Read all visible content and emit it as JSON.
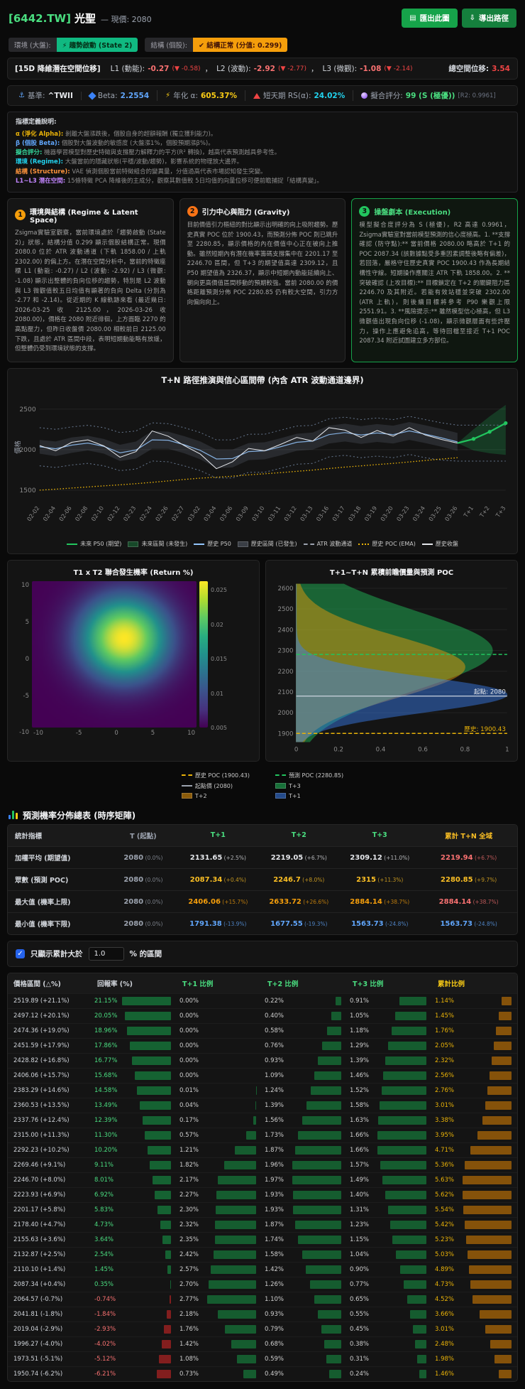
{
  "colors": {
    "accent_green": "#22c55e",
    "accent_orange": "#f59e0b",
    "accent_red": "#ef4444",
    "accent_blue": "#60a5fa",
    "accent_cyan": "#22d3ee",
    "accent_yellow": "#facc15",
    "accent_purple": "#c084fc"
  },
  "header": {
    "ticker": "[6442.TW]",
    "name": "光聖",
    "price_label": "— 現價: 2080",
    "export_image_btn": "匯出此圖",
    "export_path_btn": "導出路徑",
    "export_image_icon": "▤",
    "export_path_icon": "⇩"
  },
  "badges": {
    "env_label": "環境 (大盤):",
    "env_value": "⚡ 趨勢啟動 (State 2)",
    "struct_label": "結構 (個股):",
    "struct_value": "✔ 結構正常 (分值: 0.299)"
  },
  "latent": {
    "title": "[15D 降維潛在空間位移]",
    "items": [
      {
        "label": "L1 (動能):",
        "value": "-0.27",
        "delta": "(▼ -0.58)"
      },
      {
        "label": "L2 (波動):",
        "value": "-2.92",
        "delta": "(▼ -2.77)"
      },
      {
        "label": "L3 (微觀):",
        "value": "-1.08",
        "delta": "(▼ -2.14)"
      }
    ],
    "total_label": "總空間位移:",
    "total_value": "3.54"
  },
  "stats": [
    {
      "icon": "anchor-icon",
      "glyph": "⚓",
      "gcls": "g-anchor",
      "label": "基準:",
      "value": "^TWII",
      "cls": "v-white"
    },
    {
      "icon": "beta-diamond-icon",
      "shape": "diamond",
      "label": "Beta:",
      "value": "2.2554",
      "cls": "v-blue"
    },
    {
      "icon": "alpha-bolt-icon",
      "glyph": "⚡",
      "gcls": "g-bolt",
      "label": "年化 α:",
      "value": "605.37%",
      "cls": "v-yellow"
    },
    {
      "icon": "rs-triangle-icon",
      "shape": "triangle",
      "label": "短天期 RS(α):",
      "value": "24.02%",
      "cls": "v-cyan"
    },
    {
      "icon": "fit-score-icon",
      "shape": "crystal",
      "label": "擬合評分:",
      "value": "99 (S (極優))",
      "suffix": "[R2: 0.9961]",
      "cls": "v-green"
    }
  ],
  "definitions": {
    "title": "指標定義說明:",
    "items": [
      {
        "term": "α (淨化 Alpha):",
        "cls": "t-yellow",
        "text": "剝離大盤漲跌後，個股自身的超額報酬 (獨立獲利能力)。"
      },
      {
        "term": "β (個股 Beta):",
        "cls": "t-blue",
        "text": "個股對大盤波動的敏感度 (大盤漲1%，個股預期漲β%)。"
      },
      {
        "term": "擬合評分:",
        "cls": "t-green",
        "text": "機器學習模型對歷史特徵與支撐壓力解釋力的平方(R² 轉換)，越高代表預測越具參考性。"
      },
      {
        "term": "環境 (Regime):",
        "cls": "t-cyan",
        "text": "大盤當前的隱藏狀態(平穩/波動/趨勢)，影響系統的物理放大邊界。"
      },
      {
        "term": "結構 (Structure):",
        "cls": "t-orange",
        "text": "VAE 偵測個股當前特徵組合的變異量，分值過高代表市場認知發生突變。"
      },
      {
        "term": "L1~L3 潛在空間:",
        "cls": "t-purple",
        "text": "15條特徵 PCA 降維後的主成分，觀察其數值較 5日均值的向量位移可便前瞻捕捉「結構真變」。"
      }
    ]
  },
  "cards": [
    {
      "num": "1",
      "title": "環境與結構 (Regime & Latent Space)",
      "body": "Zsigma實驗室觀察，當前環境處於「趨勢啟動 (State 2)」狀態，結構分值 0.299 顯示個股結構正常。現價 2080.0 位於 ATR 波動通道 (下軌 1858.00 / 上軌 2302.00) 的偏上方。在潛在空間分析中，當前的特徵座標 L1 (動能: -0.27) / L2 (波動: -2.92) / L3 (微觀: -1.08) 顯示出整體的負向位移的趨勢，特別是 L2 波動與 L3 微觀值較五日均值有顯著的負向 Delta (分別為 -2.77 和 -2.14)。從近期的 K 線軌跡來看 (最近幾日: 2026-03-25 收 2125.00，2026-03-26 收 2080.00)，價格在 2080 附近徘徊，上方面臨 2270 的高點壓力，但昨日收盤價 2080.00 相較前日 2125.00 下跌，且處於 ATR 區間中段，表明短期動能略有放緩，但整體仍受到環境狀態的支撐。"
    },
    {
      "num": "2",
      "title": "引力中心與阻力 (Gravity)",
      "body": "目前價值引力樞紐的對比顯示出明確的向上吸附趨勢。歷史真實 POC 位於 1900.43，而預測分佈 POC 則已跳升至 2280.85，顯示價格的內在價值中心正在被向上推動。雖然短期內有潛在機率籌碼支撐集中在 2201.17 至 2246.70 區間，但 T+3 的期望值高達 2309.12，且 P50 期望值為 2326.37，顯示中短期內動能延續向上、朝向更高價值區間移動的預期較強。當前 2080.00 的價格距離預測分佈 POC 2280.85 仍有較大空間，引力方向偏向向上。"
    },
    {
      "num": "3",
      "title": "操盤劇本 (Execution)",
      "body": "模型擬合度評分為 S (極優)，R2 高達 0.9961，Zsigma實驗室對當前模型預測的信心度極高。1. **支撐確認 (防守點):** 當前價格 2080.00 略高於 T+1 的 POC 2087.34 (該數據點受多重因素調整後略有偏差)，若回落，嚴格守住歷史真實 POC 1900.43 作為長期結構性守線。短期操作應關注 ATR 下軌 1858.00。2. **突破確認 (上攻目標):** 目標鎖定在 T+2 的關鍵阻力區 2246.70 及其附近。若能有效站穩並突破 2302.00 (ATR 上軌)，則後續目標將參考 P90 樂觀上限 2551.91。3. **風險提示:** 雖然模型信心極高，但 L3 微觀值出現負向位移 (-1.08)，顯示微觀層面有些許壓力，操作上應避免追高，等待回檔至接近 T+1 POC 2087.34 附近試圖建立多方部位。"
    }
  ],
  "chart_data": [
    {
      "type": "line",
      "title": "T+N 路徑推演與信心區間帶 (內含 ATR 波動通道邊界)",
      "ylabel": "價格",
      "ylim": [
        1380,
        2680
      ],
      "yticks": [
        1500,
        2000,
        2500
      ],
      "x_labels": [
        "02-02",
        "02-04",
        "02-06",
        "02-08",
        "02-10",
        "02-12",
        "02-23",
        "02-24",
        "02-26",
        "02-27",
        "03-02",
        "03-04",
        "03-06",
        "03-09",
        "03-10",
        "03-11",
        "03-12",
        "03-13",
        "03-16",
        "03-17",
        "03-18",
        "03-19",
        "03-20",
        "03-23",
        "03-24",
        "03-25",
        "03-26",
        "T+1",
        "T+2",
        "T+3"
      ],
      "hist_close": [
        2050,
        1985,
        2090,
        2120,
        2045,
        1905,
        1975,
        2230,
        2165,
        2050,
        1945,
        1765,
        1850,
        2015,
        1985,
        2065,
        2150,
        2105,
        2270,
        2240,
        2150,
        2235,
        2165,
        2270,
        2180,
        2125,
        2080
      ],
      "hist_p50": [
        2035,
        2010,
        2055,
        2080,
        2040,
        1960,
        1995,
        2120,
        2115,
        2060,
        1990,
        1885,
        1890,
        1975,
        1985,
        2035,
        2090,
        2105,
        2185,
        2210,
        2180,
        2205,
        2185,
        2230,
        2190,
        2145,
        2095
      ],
      "hist_lo": [
        1950,
        1920,
        1960,
        1990,
        1950,
        1860,
        1890,
        2010,
        2010,
        1955,
        1880,
        1770,
        1780,
        1870,
        1880,
        1930,
        1985,
        2000,
        2075,
        2100,
        2070,
        2095,
        2075,
        2120,
        2080,
        2035,
        1985
      ],
      "hist_hi": [
        2120,
        2100,
        2150,
        2170,
        2130,
        2060,
        2100,
        2230,
        2220,
        2165,
        2100,
        2000,
        2000,
        2080,
        2090,
        2140,
        2195,
        2210,
        2295,
        2320,
        2290,
        2315,
        2295,
        2340,
        2300,
        2255,
        2205
      ],
      "atr_upper": [
        2270,
        2250,
        2280,
        2300,
        2270,
        2210,
        2230,
        2330,
        2320,
        2270,
        2210,
        2120,
        2120,
        2190,
        2190,
        2240,
        2290,
        2300,
        2380,
        2400,
        2370,
        2390,
        2370,
        2410,
        2370,
        2330,
        2302,
        2302,
        2302,
        2302
      ],
      "atr_lower": [
        1800,
        1780,
        1810,
        1830,
        1800,
        1740,
        1760,
        1860,
        1850,
        1800,
        1740,
        1650,
        1650,
        1720,
        1720,
        1770,
        1820,
        1830,
        1910,
        1930,
        1900,
        1920,
        1900,
        1940,
        1900,
        1870,
        1858,
        1858,
        1858,
        1858
      ],
      "poc_ema": [
        1500,
        1512,
        1526,
        1540,
        1553,
        1566,
        1580,
        1596,
        1614,
        1632,
        1648,
        1660,
        1672,
        1688,
        1702,
        1716,
        1732,
        1748,
        1766,
        1784,
        1800,
        1816,
        1830,
        1848,
        1866,
        1884,
        1900
      ],
      "future_x_start": 26,
      "future_p50": [
        2080,
        2131.65,
        2219.05,
        2326.37
      ],
      "future_lo": [
        2080,
        1990,
        1955,
        1935
      ],
      "future_hi": [
        2080,
        2250,
        2410,
        2551.91
      ]
    },
    {
      "type": "heatmap",
      "title": "T1 x T2 聯合發生機率 (Return %)",
      "x_range": [
        -10,
        10
      ],
      "y_range": [
        -10,
        10
      ],
      "x_ticks": [
        "-10",
        "-5",
        "0",
        "5",
        "10"
      ],
      "y_ticks": [
        "10",
        "5",
        "0",
        "-5",
        "-10"
      ],
      "center": [
        1.2,
        2.2
      ],
      "sigma": [
        3.4,
        3.6
      ],
      "peak_value": 0.027,
      "colorbar_ticks": [
        "0.025",
        "0.02",
        "0.015",
        "0.01",
        "0.005"
      ]
    },
    {
      "type": "area",
      "title": "T+1~T+N 累積前瞻價量與預測 POC",
      "price_range": [
        1860,
        2620
      ],
      "y_ticks": [
        1900,
        2000,
        2100,
        2200,
        2300,
        2400,
        2500,
        2600
      ],
      "x_ticks": [
        "0",
        "0.2",
        "0.4",
        "0.6",
        "0.8",
        "1"
      ],
      "series": [
        {
          "name": "T+3",
          "color": "#22c55e",
          "center": 2300,
          "sigma": 190,
          "amp": 0.93
        },
        {
          "name": "T+2",
          "color": "#f59e0b",
          "center": 2220,
          "sigma": 145,
          "amp": 0.8
        },
        {
          "name": "T+1",
          "color": "#3b82f6",
          "center": 2087,
          "sigma": 85,
          "amp": 1.0
        }
      ],
      "hist_poc": 1900.43,
      "pred_poc": 2280.85,
      "start_price": 2080,
      "ann_start": "起點: 2080",
      "ann_hist": "歷史: 1900.43"
    }
  ],
  "legend1": [
    {
      "label": "未來 P50 (期望)",
      "type": "line",
      "color": "#22c55e"
    },
    {
      "label": "未來區間 (未發生)",
      "type": "box",
      "color": "rgba(34,197,94,0.3)"
    },
    {
      "label": "歷史 P50",
      "type": "line",
      "color": "#93c5fd"
    },
    {
      "label": "歷史區間 (已發生)",
      "type": "box",
      "color": "rgba(148,163,184,0.3)"
    },
    {
      "label": "ATR 波動通道",
      "type": "dash",
      "color": "#9ca3af"
    },
    {
      "label": "歷史 POC (EMA)",
      "type": "dot",
      "color": "#eab308"
    },
    {
      "label": "歷史收盤",
      "type": "line",
      "color": "#e5e7eb"
    }
  ],
  "legend2": [
    {
      "label": "歷史 POC (1900.43)",
      "type": "dash",
      "color": "#eab308"
    },
    {
      "label": "預測 POC (2280.85)",
      "type": "dash",
      "color": "#22c55e"
    },
    {
      "label": "起點價 (2080)",
      "type": "line",
      "color": "#9ca3af"
    },
    {
      "label": "T+3",
      "type": "box",
      "color": "rgba(34,197,94,0.55)"
    },
    {
      "label": "T+2",
      "type": "box",
      "color": "rgba(245,158,11,0.55)"
    },
    {
      "label": "T+1",
      "type": "box",
      "color": "rgba(59,130,246,0.55)"
    }
  ],
  "table1": {
    "title": "預測機率分佈總表 (時序矩陣)",
    "headers": [
      "統計指標",
      "T (起點)",
      "T+1",
      "T+2",
      "T+3",
      "累計 T+N 全域"
    ],
    "rows": [
      {
        "label": "加權平均 (期望值)",
        "cells": [
          {
            "v": "2080",
            "p": "(0.0%)",
            "c": "c-gray"
          },
          {
            "v": "2131.65",
            "p": "(+2.5%)",
            "c": "c-white"
          },
          {
            "v": "2219.05",
            "p": "(+6.7%)",
            "c": "c-white"
          },
          {
            "v": "2309.12",
            "p": "(+11.0%)",
            "c": "c-white"
          },
          {
            "v": "2219.94",
            "p": "(+6.7%)",
            "c": "c-red"
          }
        ]
      },
      {
        "label": "眾數 (預測 POC)",
        "cells": [
          {
            "v": "2080",
            "p": "(0.0%)",
            "c": "c-gray"
          },
          {
            "v": "2087.34",
            "p": "(+0.4%)",
            "c": "c-orange"
          },
          {
            "v": "2246.7",
            "p": "(+8.0%)",
            "c": "c-orange"
          },
          {
            "v": "2315",
            "p": "(+11.3%)",
            "c": "c-orange"
          },
          {
            "v": "2280.85",
            "p": "(+9.7%)",
            "c": "c-orange"
          }
        ]
      },
      {
        "label": "最大值 (機率上限)",
        "cells": [
          {
            "v": "2080",
            "p": "(0.0%)",
            "c": "c-gray"
          },
          {
            "v": "2406.06",
            "p": "(+15.7%)",
            "c": "c-amber"
          },
          {
            "v": "2633.72",
            "p": "(+26.6%)",
            "c": "c-amber"
          },
          {
            "v": "2884.14",
            "p": "(+38.7%)",
            "c": "c-amber"
          },
          {
            "v": "2884.14",
            "p": "(+38.7%)",
            "c": "c-red"
          }
        ]
      },
      {
        "label": "最小值 (機率下限)",
        "cells": [
          {
            "v": "2080",
            "p": "(0.0%)",
            "c": "c-gray"
          },
          {
            "v": "1791.38",
            "p": "(-13.9%)",
            "c": "c-blue"
          },
          {
            "v": "1677.55",
            "p": "(-19.3%)",
            "c": "c-blue"
          },
          {
            "v": "1563.73",
            "p": "(-24.8%)",
            "c": "c-blue"
          },
          {
            "v": "1563.73",
            "p": "(-24.8%)",
            "c": "c-blue"
          }
        ]
      }
    ]
  },
  "filter": {
    "check_glyph": "✓",
    "label_prefix": "只顯示累計大於",
    "value": "1.0",
    "label_suffix": "% 的區間"
  },
  "table2": {
    "headers": [
      "價格區間 (△%)",
      "回報率 (%)",
      "T+1 比例",
      "T+2 比例",
      "T+3 比例",
      "累計比例"
    ],
    "max": {
      "ret": 21.15,
      "t1": 2.77,
      "t2": 1.97,
      "t3": 1.66,
      "cum": 5.63
    },
    "rows": [
      [
        "2519.89 (+21.1%)",
        "21.15%",
        "0.00%",
        "0.22%",
        "0.91%",
        "1.14%"
      ],
      [
        "2497.12 (+20.1%)",
        "20.05%",
        "0.00%",
        "0.40%",
        "1.05%",
        "1.45%"
      ],
      [
        "2474.36 (+19.0%)",
        "18.96%",
        "0.00%",
        "0.58%",
        "1.18%",
        "1.76%"
      ],
      [
        "2451.59 (+17.9%)",
        "17.86%",
        "0.00%",
        "0.76%",
        "1.29%",
        "2.05%"
      ],
      [
        "2428.82 (+16.8%)",
        "16.77%",
        "0.00%",
        "0.93%",
        "1.39%",
        "2.32%"
      ],
      [
        "2406.06 (+15.7%)",
        "15.68%",
        "0.00%",
        "1.09%",
        "1.46%",
        "2.56%"
      ],
      [
        "2383.29 (+14.6%)",
        "14.58%",
        "0.01%",
        "1.24%",
        "1.52%",
        "2.76%"
      ],
      [
        "2360.53 (+13.5%)",
        "13.49%",
        "0.04%",
        "1.39%",
        "1.58%",
        "3.01%"
      ],
      [
        "2337.76 (+12.4%)",
        "12.39%",
        "0.17%",
        "1.56%",
        "1.63%",
        "3.38%"
      ],
      [
        "2315.00 (+11.3%)",
        "11.30%",
        "0.57%",
        "1.73%",
        "1.66%",
        "3.95%"
      ],
      [
        "2292.23 (+10.2%)",
        "10.20%",
        "1.21%",
        "1.87%",
        "1.66%",
        "4.71%"
      ],
      [
        "2269.46 (+9.1%)",
        "9.11%",
        "1.82%",
        "1.96%",
        "1.57%",
        "5.36%"
      ],
      [
        "2246.70 (+8.0%)",
        "8.01%",
        "2.17%",
        "1.97%",
        "1.49%",
        "5.63%"
      ],
      [
        "2223.93 (+6.9%)",
        "6.92%",
        "2.27%",
        "1.93%",
        "1.40%",
        "5.62%"
      ],
      [
        "2201.17 (+5.8%)",
        "5.83%",
        "2.30%",
        "1.93%",
        "1.31%",
        "5.54%"
      ],
      [
        "2178.40 (+4.7%)",
        "4.73%",
        "2.32%",
        "1.87%",
        "1.23%",
        "5.42%"
      ],
      [
        "2155.63 (+3.6%)",
        "3.64%",
        "2.35%",
        "1.74%",
        "1.15%",
        "5.23%"
      ],
      [
        "2132.87 (+2.5%)",
        "2.54%",
        "2.42%",
        "1.58%",
        "1.04%",
        "5.03%"
      ],
      [
        "2110.10 (+1.4%)",
        "1.45%",
        "2.57%",
        "1.42%",
        "0.90%",
        "4.89%"
      ],
      [
        "2087.34 (+0.4%)",
        "0.35%",
        "2.70%",
        "1.26%",
        "0.77%",
        "4.73%"
      ],
      [
        "2064.57 (-0.7%)",
        "-0.74%",
        "2.77%",
        "1.10%",
        "0.65%",
        "4.52%"
      ],
      [
        "2041.81 (-1.8%)",
        "-1.84%",
        "2.18%",
        "0.93%",
        "0.55%",
        "3.66%"
      ],
      [
        "2019.04 (-2.9%)",
        "-2.93%",
        "1.76%",
        "0.79%",
        "0.45%",
        "3.01%"
      ],
      [
        "1996.27 (-4.0%)",
        "-4.02%",
        "1.42%",
        "0.68%",
        "0.38%",
        "2.48%"
      ],
      [
        "1973.51 (-5.1%)",
        "-5.12%",
        "1.08%",
        "0.59%",
        "0.31%",
        "1.98%"
      ],
      [
        "1950.74 (-6.2%)",
        "-6.21%",
        "0.73%",
        "0.49%",
        "0.24%",
        "1.46%"
      ]
    ]
  }
}
